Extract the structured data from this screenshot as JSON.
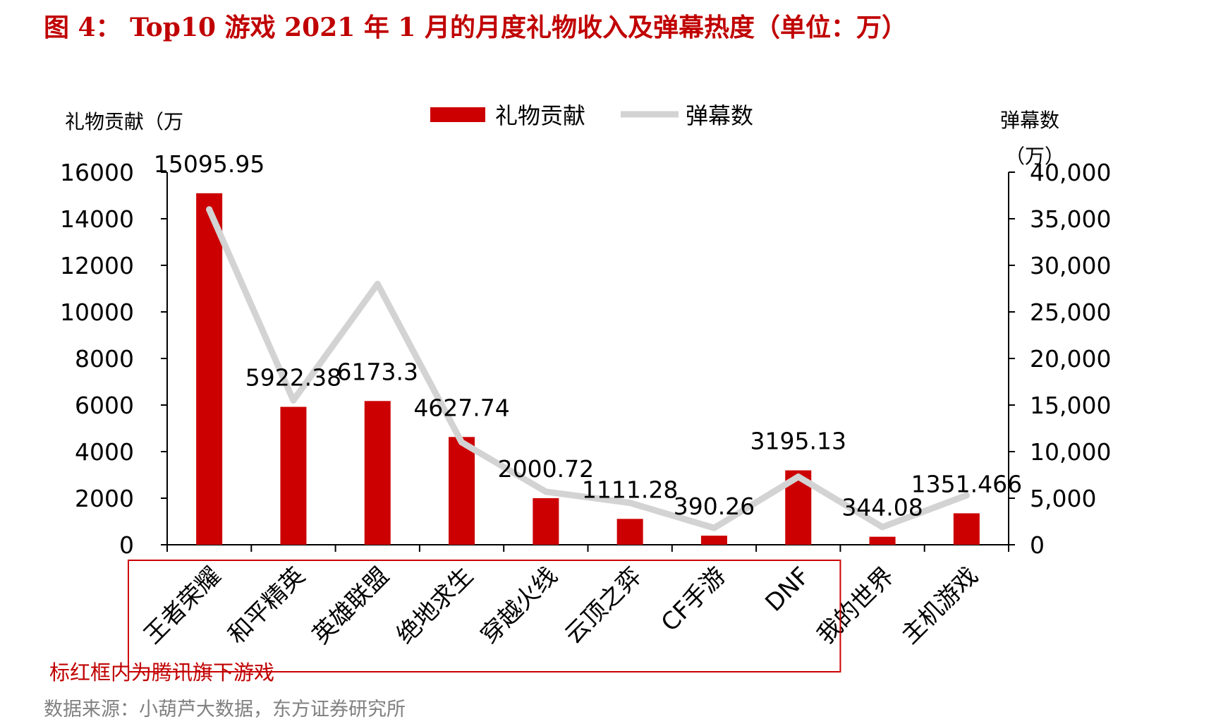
{
  "header": {
    "title": "图 4：  Top10 游戏 2021 年 1 月的月度礼物收入及弹幕热度（单位：万）"
  },
  "chart_data": {
    "type": "bar",
    "categories": [
      "王者荣耀",
      "和平精英",
      "英雄联盟",
      "绝地求生",
      "穿越火线",
      "云顶之弈",
      "CF手游",
      "DNF",
      "我的世界",
      "主机游戏"
    ],
    "series": [
      {
        "name": "礼物贡献",
        "type": "bar",
        "axis": "left",
        "color": "#cc0000",
        "values": [
          15095.95,
          5922.38,
          6173.3,
          4627.74,
          2000.72,
          1111.28,
          390.26,
          3195.13,
          344.08,
          1351.466
        ],
        "labels": [
          "15095.95",
          "5922.38",
          "6173.3",
          "4627.74",
          "2000.72",
          "1111.28",
          "390.26",
          "3195.13",
          "344.08",
          "1351.466"
        ]
      },
      {
        "name": "弹幕数",
        "type": "line",
        "axis": "right",
        "color": "#d3d3d3",
        "values": [
          36000,
          15500,
          28000,
          11000,
          5700,
          4500,
          1800,
          7300,
          1900,
          5300
        ]
      }
    ],
    "left_axis": {
      "label": "礼物贡献（万",
      "ylim": [
        0,
        16000
      ],
      "ticks": [
        "0",
        "2000",
        "4000",
        "6000",
        "8000",
        "10000",
        "12000",
        "14000",
        "16000"
      ]
    },
    "right_axis": {
      "label_line1": "弹幕数",
      "label_line2": "（万）",
      "ylim": [
        0,
        40000
      ],
      "ticks": [
        "0",
        "5,000",
        "10,000",
        "15,000",
        "20,000",
        "25,000",
        "30,000",
        "35,000",
        "40,000"
      ]
    },
    "legend": {
      "position": "top-center"
    },
    "grid": false,
    "highlight": {
      "from_index": 0,
      "to_index": 7,
      "color": "#cc0000"
    }
  },
  "footer": {
    "note": "标红框内为腾讯旗下游戏",
    "source": "数据来源：小葫芦大数据，东方证券研究所"
  }
}
